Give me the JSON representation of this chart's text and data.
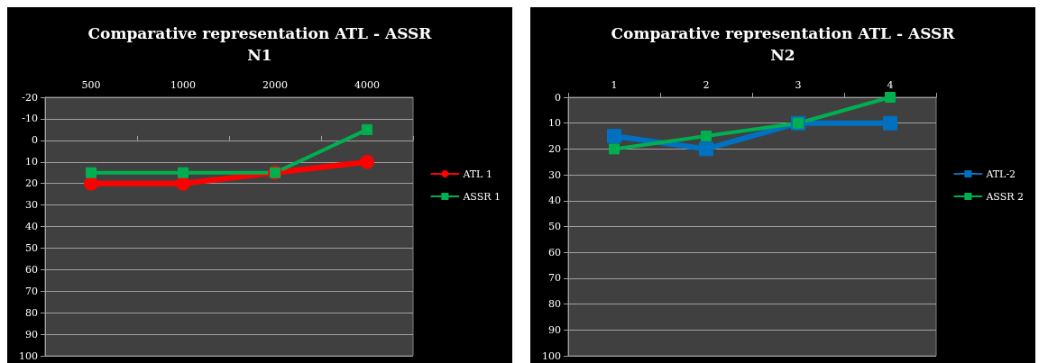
{
  "chart_data": [
    {
      "type": "line",
      "title": "Comparative representation ATL - ASSR\nN1",
      "categories": [
        "500",
        "1000",
        "2000",
        "4000"
      ],
      "ylim": [
        100,
        -20
      ],
      "yticks": [
        -20,
        -10,
        0,
        10,
        20,
        30,
        40,
        50,
        60,
        70,
        80,
        90,
        100
      ],
      "grid": "y",
      "legend": "right",
      "line_style": "solid",
      "series": [
        {
          "name": "ATL 1",
          "color": "#ff0000",
          "marker": "circle",
          "values": [
            20,
            20,
            15,
            10
          ]
        },
        {
          "name": "ASSR 1",
          "color": "#00b050",
          "marker": "square",
          "values": [
            15,
            15,
            15,
            -5
          ]
        }
      ]
    },
    {
      "type": "line",
      "title": "Comparative representation ATL - ASSR\nN2",
      "categories": [
        "1",
        "2",
        "3",
        "4"
      ],
      "ylim": [
        100,
        0
      ],
      "yticks": [
        0,
        10,
        20,
        30,
        40,
        50,
        60,
        70,
        80,
        90,
        100
      ],
      "grid": "y",
      "legend": "right",
      "line_style": "solid",
      "series": [
        {
          "name": "ATL-2",
          "color": "#0070c0",
          "marker": "square",
          "values": [
            15,
            20,
            10,
            10
          ]
        },
        {
          "name": "ASSR 2",
          "color": "#00b050",
          "marker": "square",
          "values": [
            20,
            15,
            10,
            0
          ]
        }
      ]
    }
  ]
}
